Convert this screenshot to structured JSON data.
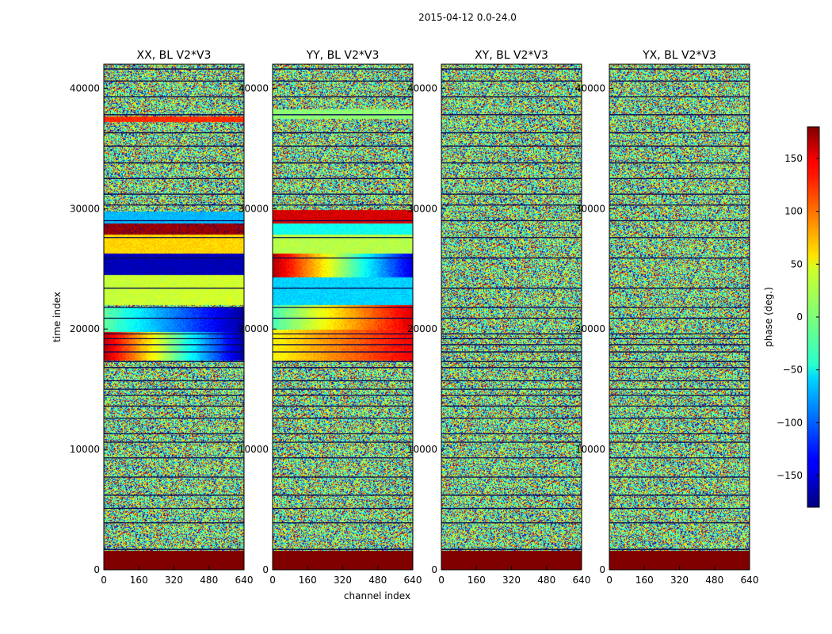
{
  "chart_data": {
    "type": "heatmap",
    "suptitle": "2015-04-12 0.0-24.0",
    "xlabel": "channel index",
    "ylabel": "time index",
    "colorbar_label": "phase (deg.)",
    "colormap": "jet",
    "clim": [
      -180,
      180
    ],
    "xlim": [
      0,
      640
    ],
    "ylim": [
      0,
      42000
    ],
    "x_ticks": [
      "0",
      "160",
      "320",
      "480",
      "640"
    ],
    "y_ticks": [
      "0",
      "10000",
      "20000",
      "30000",
      "40000"
    ],
    "colorbar_ticks": [
      "150",
      "100",
      "50",
      "0",
      "−50",
      "−100",
      "−150"
    ],
    "colorbar_tick_values": [
      150,
      100,
      50,
      0,
      -50,
      -100,
      -150
    ],
    "panels": [
      {
        "title": "XX, BL V2*V3",
        "bottom_band": {
          "t_range": [
            0,
            1600
          ],
          "phase": 180
        },
        "coherent_bands": [
          {
            "t_range": [
              17400,
              19800
            ],
            "phase_left": 160,
            "phase_right": -170
          },
          {
            "t_range": [
              19800,
              21800
            ],
            "phase_left": -10,
            "phase_right": -170
          },
          {
            "t_range": [
              22000,
              24500
            ],
            "phase_left": 25,
            "phase_right": 30
          },
          {
            "t_range": [
              24500,
              26300
            ],
            "phase_left": -160,
            "phase_right": -160
          },
          {
            "t_range": [
              26300,
              27900
            ],
            "phase_left": 60,
            "phase_right": 60
          },
          {
            "t_range": [
              27900,
              28800
            ],
            "phase_left": 170,
            "phase_right": 170
          },
          {
            "t_range": [
              28800,
              29800
            ],
            "phase_left": -70,
            "phase_right": -70
          },
          {
            "t_range": [
              37200,
              37700
            ],
            "phase_left": 120,
            "phase_right": 120
          }
        ]
      },
      {
        "title": "YY, BL V2*V3",
        "bottom_band": {
          "t_range": [
            0,
            1600
          ],
          "phase": 180
        },
        "coherent_bands": [
          {
            "t_range": [
              17400,
              20000
            ],
            "phase_left": 45,
            "phase_right": 140
          },
          {
            "t_range": [
              20000,
              22000
            ],
            "phase_left": -20,
            "phase_right": 150
          },
          {
            "t_range": [
              22000,
              24300
            ],
            "phase_left": -60,
            "phase_right": -60
          },
          {
            "t_range": [
              24300,
              26300
            ],
            "phase_left": 165,
            "phase_right": -150
          },
          {
            "t_range": [
              26300,
              27900
            ],
            "phase_left": 20,
            "phase_right": 20
          },
          {
            "t_range": [
              27900,
              28800
            ],
            "phase_left": -40,
            "phase_right": -40
          },
          {
            "t_range": [
              28800,
              29900
            ],
            "phase_left": 150,
            "phase_right": 150
          },
          {
            "t_range": [
              37500,
              38300
            ],
            "phase_left": 5,
            "phase_right": 5
          }
        ]
      },
      {
        "title": "XY, BL V2*V3",
        "bottom_band": {
          "t_range": [
            0,
            1600
          ],
          "phase": 180
        },
        "coherent_bands": []
      },
      {
        "title": "YX, BL V2*V3",
        "bottom_band": {
          "t_range": [
            0,
            1600
          ],
          "phase": 180
        },
        "coherent_bands": []
      }
    ],
    "gap_rows": [
      1700,
      3900,
      5100,
      6200,
      7700,
      9300,
      10600,
      11300,
      12600,
      13600,
      14500,
      15000,
      15700,
      16800,
      17300,
      18100,
      18700,
      19200,
      19600,
      20900,
      21800,
      23400,
      25900,
      27600,
      29000,
      30300,
      31200,
      32500,
      33800,
      35200,
      36300,
      37800,
      39300,
      40600,
      41600
    ]
  }
}
